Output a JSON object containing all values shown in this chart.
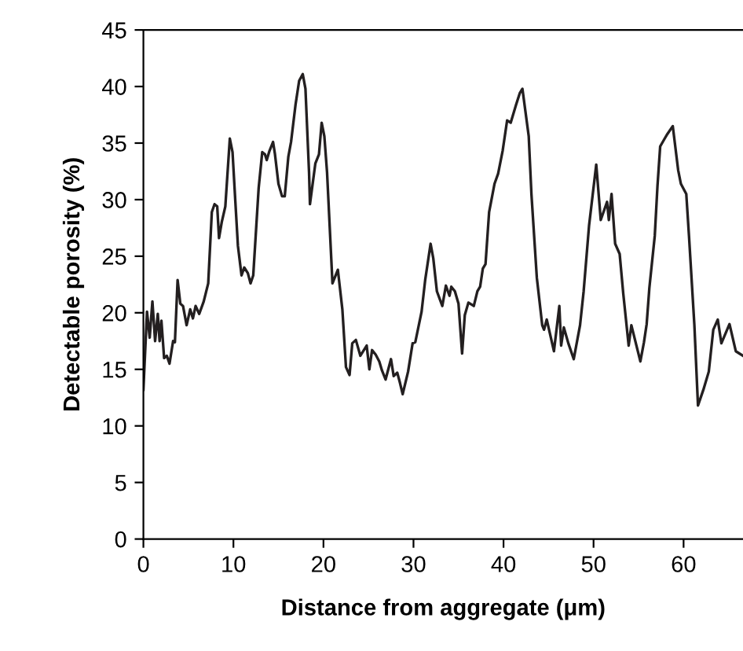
{
  "chart_data": {
    "type": "line",
    "xlabel": "Distance from aggregate (μm)",
    "ylabel": "Detectable porosity (%)",
    "xlim": [
      0,
      66.6
    ],
    "xticks": [
      0,
      10,
      20,
      30,
      40,
      50,
      60
    ],
    "ylim": [
      0,
      45
    ],
    "yticks": [
      0,
      5,
      10,
      15,
      20,
      25,
      30,
      35,
      40,
      45
    ],
    "grid": false,
    "marker": "none",
    "line_style": "solid",
    "series": [
      {
        "color": "#231f20",
        "x": [
          0,
          0.4,
          0.7,
          1.0,
          1.3,
          1.6,
          1.8,
          2.0,
          2.3,
          2.6,
          2.9,
          3.3,
          3.5,
          3.8,
          4.1,
          4.4,
          4.8,
          5.2,
          5.5,
          5.8,
          6.2,
          6.7,
          7.2,
          7.6,
          7.9,
          8.2,
          8.4,
          8.7,
          9.1,
          9.6,
          9.9,
          10.2,
          10.5,
          10.9,
          11.2,
          11.6,
          11.9,
          12.2,
          12.8,
          13.2,
          13.5,
          13.7,
          14.0,
          14.4,
          14.6,
          15.0,
          15.4,
          15.7,
          16.1,
          16.4,
          16.9,
          17.3,
          17.7,
          18.0,
          18.4,
          18.5,
          18.8,
          19.1,
          19.5,
          19.8,
          20.1,
          20.4,
          21.0,
          21.6,
          22.1,
          22.5,
          22.9,
          23.2,
          23.6,
          24.1,
          24.8,
          25.1,
          25.4,
          25.8,
          26.2,
          26.5,
          26.9,
          27.5,
          27.8,
          28.2,
          28.5,
          28.8,
          29.4,
          29.9,
          30.2,
          30.9,
          31.3,
          31.9,
          32.2,
          32.6,
          33.2,
          33.6,
          34.0,
          34.2,
          34.6,
          35.0,
          35.4,
          35.7,
          36.1,
          36.7,
          37.1,
          37.4,
          37.7,
          38.0,
          38.4,
          39.0,
          39.4,
          39.9,
          40.4,
          40.8,
          41.4,
          41.8,
          42.1,
          42.8,
          43.1,
          43.7,
          44.3,
          44.5,
          44.8,
          45.6,
          46.2,
          46.4,
          46.7,
          47.2,
          47.8,
          48.5,
          48.9,
          49.5,
          50.3,
          50.8,
          51.5,
          51.7,
          52.0,
          52.4,
          52.9,
          53.3,
          53.6,
          53.9,
          54.2,
          55.2,
          55.6,
          55.9,
          56.2,
          56.8,
          57.1,
          57.4,
          57.9,
          58.2,
          58.8,
          59.4,
          59.7,
          60.3,
          60.6,
          61.2,
          61.6,
          62.2,
          62.8,
          63.3,
          63.8,
          64.2,
          65.1,
          65.8,
          66.6
        ],
        "values": [
          13.2,
          20.1,
          17.8,
          21.0,
          17.5,
          19.9,
          17.5,
          19.3,
          16.0,
          16.2,
          15.5,
          17.5,
          17.4,
          22.9,
          20.8,
          20.6,
          18.9,
          20.3,
          19.5,
          20.6,
          19.9,
          21.0,
          22.6,
          28.9,
          29.6,
          29.4,
          26.6,
          28.0,
          29.4,
          35.4,
          34.2,
          30.0,
          25.9,
          23.3,
          24.0,
          23.5,
          22.6,
          23.3,
          31.0,
          34.2,
          34.0,
          33.5,
          34.3,
          35.1,
          34.1,
          31.4,
          30.3,
          30.3,
          33.8,
          35.1,
          38.4,
          40.5,
          41.1,
          39.8,
          32.4,
          29.6,
          31.4,
          33.2,
          34.0,
          36.8,
          35.6,
          32.4,
          22.6,
          23.8,
          20.3,
          15.2,
          14.5,
          17.3,
          17.6,
          16.2,
          17.1,
          15.0,
          16.7,
          16.3,
          15.7,
          14.9,
          14.1,
          15.9,
          14.4,
          14.7,
          13.8,
          12.8,
          14.8,
          17.3,
          17.4,
          20.1,
          22.9,
          26.1,
          24.8,
          21.9,
          20.6,
          22.4,
          21.5,
          22.3,
          21.9,
          20.8,
          16.4,
          19.8,
          20.9,
          20.6,
          21.9,
          22.3,
          23.9,
          24.3,
          28.9,
          31.4,
          32.3,
          34.3,
          37.0,
          36.8,
          38.4,
          39.4,
          39.8,
          35.6,
          30.5,
          23.1,
          18.9,
          18.5,
          19.4,
          16.6,
          20.6,
          17.1,
          18.7,
          17.3,
          15.9,
          18.9,
          21.9,
          27.7,
          33.1,
          28.2,
          29.8,
          28.2,
          30.5,
          26.1,
          25.2,
          21.7,
          19.4,
          17.1,
          18.9,
          15.7,
          17.4,
          19.0,
          22.2,
          26.8,
          31.2,
          34.7,
          35.4,
          35.8,
          36.5,
          32.6,
          31.4,
          30.5,
          26.8,
          18.9,
          11.8,
          13.2,
          14.8,
          18.5,
          19.4,
          17.3,
          19.0,
          16.6,
          16.2
        ]
      }
    ]
  }
}
